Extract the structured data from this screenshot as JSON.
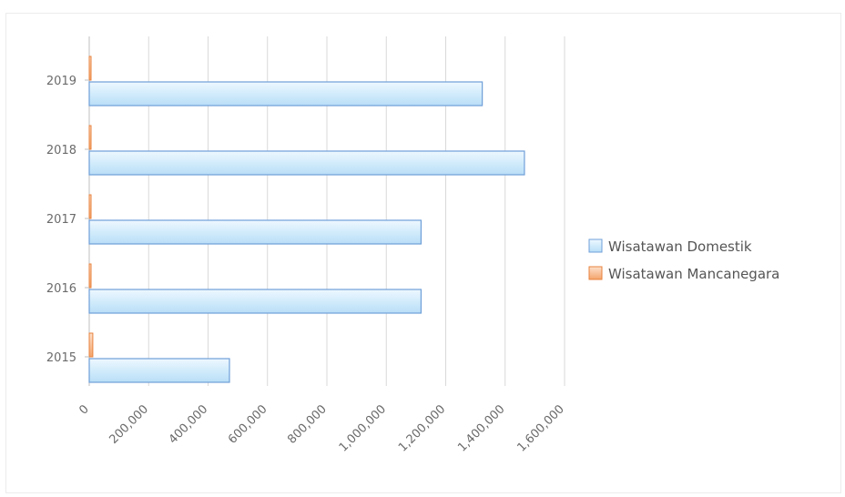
{
  "chart_data": {
    "type": "bar",
    "orientation": "horizontal",
    "categories": [
      "2019",
      "2018",
      "2017",
      "2016",
      "2015"
    ],
    "series": [
      {
        "name": "Wisatawan Domestik",
        "values": [
          1323000,
          1465000,
          1117000,
          1117000,
          472000
        ],
        "color": "#d6eefb",
        "stroke": "#6f9fd8"
      },
      {
        "name": "Wisatawan Mancanegara",
        "values": [
          3500,
          3500,
          3500,
          3500,
          12000
        ],
        "color": "#f8c9a8",
        "stroke": "#e8823c"
      }
    ],
    "x_ticks": [
      "0",
      "200,000",
      "400,000",
      "600,000",
      "800,000",
      "1,000,000",
      "1,200,000",
      "1,400,000",
      "1,600,000"
    ],
    "xlim": [
      0,
      1600000
    ],
    "grid": true,
    "legend_position": "right",
    "title": "",
    "xlabel": "",
    "ylabel": ""
  }
}
